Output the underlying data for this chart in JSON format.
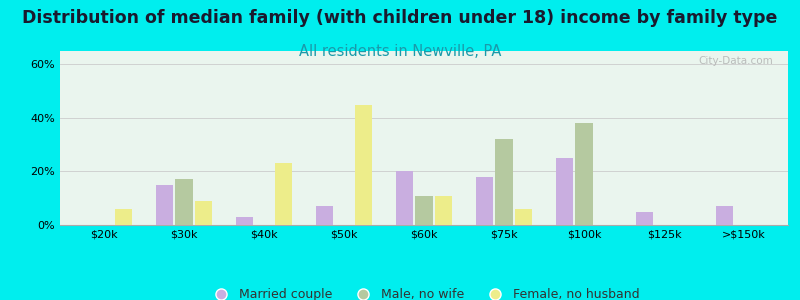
{
  "title": "Distribution of median family (with children under 18) income by family type",
  "subtitle": "All residents in Newville, PA",
  "categories": [
    "$20k",
    "$30k",
    "$40k",
    "$50k",
    "$60k",
    "$75k",
    "$100k",
    "$125k",
    ">$150k"
  ],
  "series": {
    "Married couple": [
      0,
      15,
      3,
      7,
      20,
      18,
      25,
      5,
      7
    ],
    "Male, no wife": [
      0,
      17,
      0,
      0,
      11,
      32,
      38,
      0,
      0
    ],
    "Female, no husband": [
      6,
      9,
      23,
      45,
      11,
      6,
      0,
      0,
      0
    ]
  },
  "colors": {
    "Married couple": "#c9aee0",
    "Male, no wife": "#b5c9a0",
    "Female, no husband": "#eded8a"
  },
  "ylim": [
    0,
    65
  ],
  "yticks": [
    0,
    20,
    40,
    60
  ],
  "yticklabels": [
    "0%",
    "20%",
    "40%",
    "60%"
  ],
  "background_color": "#00eeee",
  "plot_bg": "#eaf5ee",
  "title_fontsize": 12.5,
  "subtitle_fontsize": 10.5,
  "subtitle_color": "#1a9aaa",
  "watermark": "City-Data.com",
  "bar_width": 0.24,
  "legend_fontsize": 9,
  "tick_fontsize": 8
}
